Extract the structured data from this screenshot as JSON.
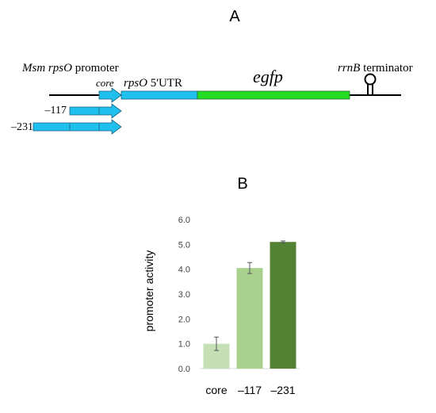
{
  "panel_a": {
    "label": "A",
    "promoter_label_italic": "Msm rpsO",
    "promoter_label_rest": " promoter",
    "core_label": "core",
    "utr_label_italic": "rpsO",
    "utr_label_rest": " 5'UTR",
    "gene_label": "egfp",
    "terminator_label_italic": "rrnB",
    "terminator_label_rest": " terminator",
    "variant_labels": [
      "–117",
      "–231"
    ],
    "colors": {
      "promoter": "#1ec0ee",
      "utr": "#1ec0ee",
      "gene": "#22dd22",
      "line": "#000000"
    }
  },
  "panel_b": {
    "label": "B"
  },
  "chart_data": {
    "type": "bar",
    "title": "",
    "xlabel": "",
    "ylabel": "promoter activity",
    "categories": [
      "core",
      "–117",
      "–231"
    ],
    "values": [
      1.0,
      4.05,
      5.1
    ],
    "errors": [
      0.27,
      0.22,
      0.04
    ],
    "ylim": [
      0,
      6
    ],
    "yticks": [
      "0.0",
      "1.0",
      "2.0",
      "3.0",
      "4.0",
      "5.0",
      "6.0"
    ],
    "colors": [
      "#c5e0b4",
      "#a9d18e",
      "#548235"
    ],
    "grid": false
  }
}
